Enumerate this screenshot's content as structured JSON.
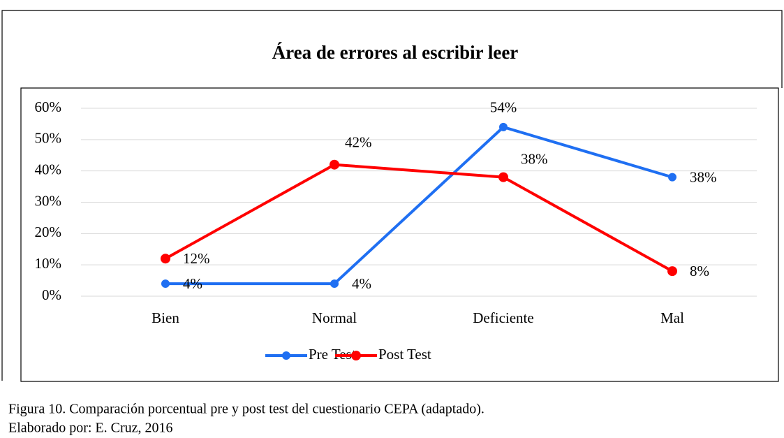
{
  "chart_data": {
    "type": "line",
    "title": "Área de errores al escribir leer",
    "categories": [
      "Bien",
      "Normal",
      "Deficiente",
      "Mal"
    ],
    "series": [
      {
        "name": "Pre Test",
        "color": "#1f6ff2",
        "values": [
          4,
          4,
          54,
          38
        ],
        "value_labels": [
          "4%",
          "4%",
          "54%",
          "38%"
        ]
      },
      {
        "name": "Post Test",
        "color": "#ff0000",
        "values": [
          12,
          42,
          38,
          8
        ],
        "value_labels": [
          "12%",
          "42%",
          "38%",
          "8%"
        ]
      }
    ],
    "ylim": [
      0,
      60
    ],
    "yticks": [
      {
        "value": 0,
        "label": "0%"
      },
      {
        "value": 10,
        "label": "10%"
      },
      {
        "value": 20,
        "label": "20%"
      },
      {
        "value": 30,
        "label": "30%"
      },
      {
        "value": 40,
        "label": "40%"
      },
      {
        "value": 50,
        "label": "50%"
      },
      {
        "value": 60,
        "label": "60%"
      }
    ],
    "grid": true,
    "legend": "bottom"
  },
  "caption": [
    "Figura 10. Comparación porcentual pre y post test del cuestionario CEPA (adaptado).",
    "Elaborado por: E. Cruz, 2016"
  ]
}
